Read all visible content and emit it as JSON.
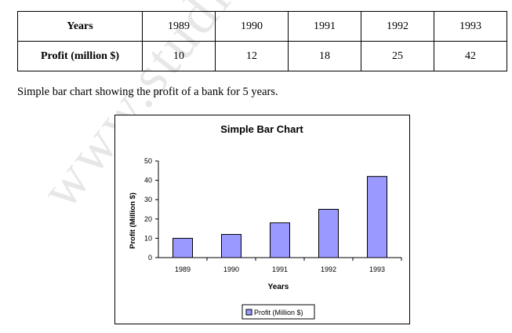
{
  "watermark": "www.studie",
  "table": {
    "row_headers": [
      "Years",
      "Profit (million $)"
    ],
    "years": [
      "1989",
      "1990",
      "1991",
      "1992",
      "1993"
    ],
    "profits": [
      "10",
      "12",
      "18",
      "25",
      "42"
    ]
  },
  "caption": "Simple bar chart showing the profit of a bank for 5 years.",
  "chart_data": {
    "type": "bar",
    "title": "Simple Bar Chart",
    "categories": [
      "1989",
      "1990",
      "1991",
      "1992",
      "1993"
    ],
    "series": [
      {
        "name": "Profit (Million $)",
        "values": [
          10,
          12,
          18,
          25,
          42
        ]
      }
    ],
    "xlabel": "Years",
    "ylabel": "Profit (Million $)",
    "ylim": [
      0,
      50
    ],
    "yticks": [
      "0",
      "10",
      "20",
      "30",
      "40",
      "50"
    ],
    "grid": false,
    "legend": "bottom",
    "bar_color": "#9999ff"
  }
}
